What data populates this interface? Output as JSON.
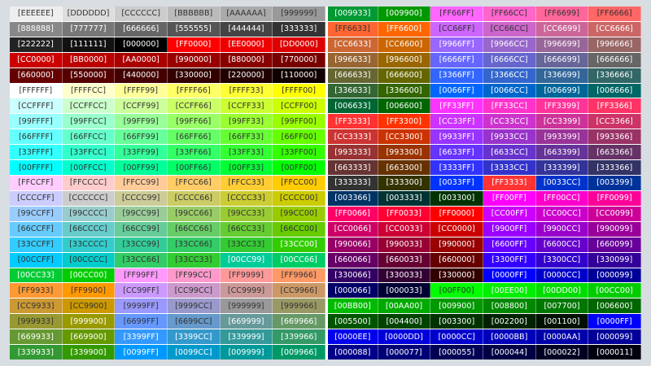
{
  "chart": {
    "rows": [
      [
        "EEEEEE",
        "DDDDDD",
        "CCCCCC",
        "BBBBBB",
        "AAAAAA",
        "999999",
        "009933",
        "009900",
        "FF66FF",
        "FF66CC",
        "FF6699",
        "FF6666"
      ],
      [
        "888888",
        "777777",
        "666666",
        "555555",
        "444444",
        "333333",
        "FF6633",
        "FF6600",
        "CC66FF",
        "CC66CC",
        "CC6699",
        "CC6666"
      ],
      [
        "222222",
        "111111",
        "000000",
        "FF0000",
        "EE0000",
        "DD0000",
        "CC6633",
        "CC6600",
        "9966FF",
        "9966CC",
        "996699",
        "996666"
      ],
      [
        "CC0000",
        "BB0000",
        "AA0000",
        "990000",
        "880000",
        "770000",
        "996633",
        "996600",
        "6666FF",
        "6666CC",
        "666699",
        "666666"
      ],
      [
        "660000",
        "550000",
        "440000",
        "330000",
        "220000",
        "110000",
        "666633",
        "666600",
        "3366FF",
        "3366CC",
        "336699",
        "336666"
      ],
      [
        "FFFFFF",
        "FFFFCC",
        "FFFF99",
        "FFFF66",
        "FFFF33",
        "FFFF00",
        "336633",
        "336600",
        "0066FF",
        "0066CC",
        "006699",
        "006666"
      ],
      [
        "CCFFFF",
        "CCFFCC",
        "CCFF99",
        "CCFF66",
        "CCFF33",
        "CCFF00",
        "006633",
        "006600",
        "FF33FF",
        "FF33CC",
        "FF3399",
        "FF3366"
      ],
      [
        "99FFFF",
        "99FFCC",
        "99FF99",
        "99FF66",
        "99FF33",
        "99FF00",
        "FF3333",
        "FF3300",
        "CC33FF",
        "CC33CC",
        "CC3399",
        "CC3366"
      ],
      [
        "66FFFF",
        "66FFCC",
        "66FF99",
        "66FF66",
        "66FF33",
        "66FF00",
        "CC3333",
        "CC3300",
        "9933FF",
        "9933CC",
        "993399",
        "993366"
      ],
      [
        "33FFFF",
        "33FFCC",
        "33FF99",
        "33FF66",
        "33FF33",
        "33FF00",
        "993333",
        "993300",
        "6633FF",
        "6633CC",
        "663399",
        "663366"
      ],
      [
        "00FFFF",
        "00FFCC",
        "00FF99",
        "00FF66",
        "00FF33",
        "00FF00",
        "663333",
        "663300",
        "3333FF",
        "3333CC",
        "333399",
        "333366"
      ],
      [
        "FFCCFF",
        "FFCCCC",
        "FFCC99",
        "FFCC66",
        "FFCC33",
        "FFCC00",
        "333333",
        "333300",
        "0033FF",
        "FF3333",
        "0033CC",
        "003399"
      ],
      [
        "CCCCFF",
        "CCCCCC",
        "CCCC99",
        "CCCC66",
        "CCCC33",
        "CCCC00",
        "003366",
        "003333",
        "003300",
        "FF00FF",
        "FF00CC",
        "FF0099"
      ],
      [
        "99CCFF",
        "99CCCC",
        "99CC99",
        "99CC66",
        "99CC33",
        "99CC00",
        "FF0066",
        "FF0033",
        "FF0000",
        "CC00FF",
        "CC00CC",
        "CC0099"
      ],
      [
        "66CCFF",
        "66CCCC",
        "66CC99",
        "66CC66",
        "66CC33",
        "66CC00",
        "CC0066",
        "CC0033",
        "CC0000",
        "9900FF",
        "9900CC",
        "990099"
      ],
      [
        "33CCFF",
        "33CCCC",
        "33CC99",
        "33CC66",
        "33CC33",
        "33CC00",
        "990066",
        "990033",
        "990000",
        "6600FF",
        "6600CC",
        "660099"
      ],
      [
        "00CCFF",
        "00CCCC",
        "33CC66",
        "33CC33",
        "00CC99",
        "00CC66",
        "660066",
        "660033",
        "660000",
        "3300FF",
        "3300CC",
        "330099"
      ],
      [
        "00CC33",
        "00CC00",
        "FF99FF",
        "FF99CC",
        "FF9999",
        "FF9966",
        "330066",
        "330033",
        "330000",
        "0000FF",
        "0000CC",
        "000099"
      ],
      [
        "FF9933",
        "FF9900",
        "CC99FF",
        "CC99CC",
        "CC9999",
        "CC9966",
        "000066",
        "000033",
        "00FF00",
        "00EE00",
        "00DD00",
        "00CC00"
      ],
      [
        "CC9933",
        "CC9900",
        "9999FF",
        "9999CC",
        "999999",
        "999966",
        "00BB00",
        "00AA00",
        "009900",
        "008800",
        "007700",
        "006600"
      ],
      [
        "999933",
        "999900",
        "6699FF",
        "6699CC",
        "669999",
        "669966",
        "005500",
        "004400",
        "003300",
        "002200",
        "001100",
        "0000FF"
      ],
      [
        "669933",
        "669900",
        "3399FF",
        "3399CC",
        "339999",
        "339966",
        "0000EE",
        "0000DD",
        "0000CC",
        "0000BB",
        "0000AA",
        "000099"
      ],
      [
        "339933",
        "339900",
        "0099FF",
        "0099CC",
        "009999",
        "009966",
        "000088",
        "000077",
        "000055",
        "000044",
        "000022",
        "000011"
      ]
    ],
    "label_format": "[{hex}]"
  }
}
